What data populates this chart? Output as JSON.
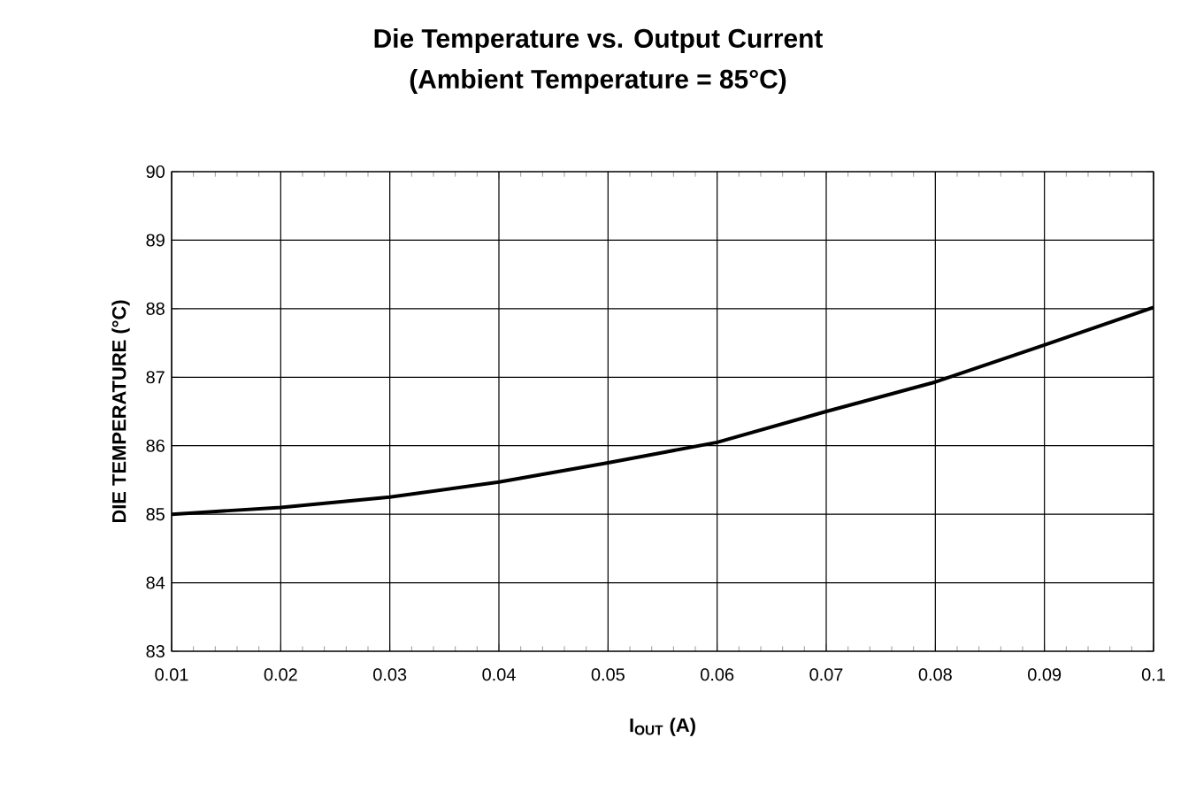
{
  "chart_data": {
    "type": "line",
    "title": "Die Temperature vs. Output Current",
    "subtitle": "(Ambient Temperature = 85°C)",
    "xlabel": "I$_{OUT}$ (A)",
    "ylabel": "DIE TEMPERATURE (°C)",
    "x": [
      0.01,
      0.02,
      0.03,
      0.04,
      0.05,
      0.06,
      0.07,
      0.08,
      0.09,
      0.1
    ],
    "series": [
      {
        "color": "#000000",
        "values": [
          85.0,
          85.1,
          85.25,
          85.47,
          85.75,
          86.05,
          86.5,
          86.93,
          87.47,
          88.02
        ]
      }
    ],
    "xlim": [
      0.01,
      0.1
    ],
    "ylim": [
      83,
      90
    ],
    "xticks": [
      0.01,
      0.02,
      0.03,
      0.04,
      0.05,
      0.06,
      0.07,
      0.08,
      0.09,
      0.1
    ],
    "yticks": [
      83,
      84,
      85,
      86,
      87,
      88,
      89,
      90
    ],
    "grid": true,
    "marker": "none",
    "line_style": "solid"
  }
}
